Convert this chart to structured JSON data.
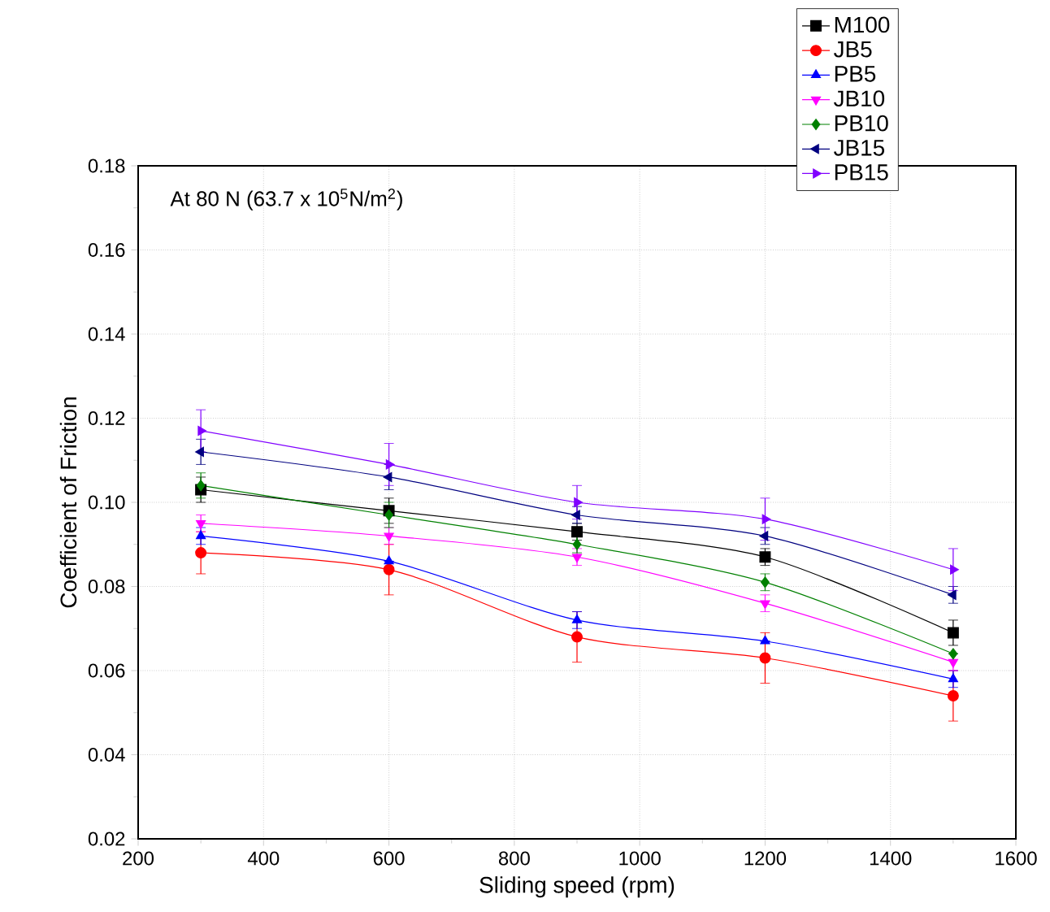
{
  "chart_data": {
    "type": "line",
    "xlabel": "Sliding speed (rpm)",
    "ylabel": "Coefficient of Friction",
    "annotations": [
      "At 80 N (63.7 x 10$^{5}$N/m$^{2}$)"
    ],
    "x": [
      300,
      600,
      900,
      1200,
      1500
    ],
    "xlim": [
      200,
      1600
    ],
    "xticks": [
      200,
      400,
      600,
      800,
      1000,
      1200,
      1400,
      1600
    ],
    "ylim": [
      0.02,
      0.18
    ],
    "yticks": [
      0.02,
      0.04,
      0.06,
      0.08,
      {
        "value": 0.1,
        "label": "0.10"
      },
      0.12,
      0.14,
      0.16,
      0.18
    ],
    "grid": true,
    "legend": "top right",
    "series": [
      {
        "name": "M100",
        "color": "#000000",
        "marker": "square",
        "values": [
          0.103,
          0.098,
          0.093,
          0.087,
          0.069
        ],
        "errors": [
          0.003,
          0.003,
          0.002,
          0.002,
          0.003
        ]
      },
      {
        "name": "JB5",
        "color": "#ff0000",
        "marker": "circle",
        "values": [
          0.088,
          0.084,
          0.068,
          0.063,
          0.054
        ],
        "errors": [
          0.005,
          0.006,
          0.006,
          0.006,
          0.006
        ]
      },
      {
        "name": "PB5",
        "color": "#0000ff",
        "marker": "triangle",
        "values": [
          0.092,
          0.086,
          0.072,
          0.067,
          0.058
        ],
        "errors": [
          0.002,
          null,
          0.002,
          null,
          0.002
        ]
      },
      {
        "name": "JB10",
        "color": "#ff00ff",
        "marker": "triangle-down",
        "values": [
          0.095,
          0.092,
          0.087,
          0.076,
          0.062
        ],
        "errors": [
          0.002,
          0.002,
          0.002,
          0.002,
          0.002
        ]
      },
      {
        "name": "PB10",
        "color": "#008000",
        "marker": "diamond",
        "values": [
          0.104,
          0.097,
          0.09,
          0.081,
          0.064
        ],
        "errors": [
          0.003,
          0.003,
          0.002,
          0.002,
          null
        ]
      },
      {
        "name": "JB15",
        "color": "#000080",
        "marker": "triangle-left",
        "values": [
          0.112,
          0.106,
          0.097,
          0.092,
          0.078
        ],
        "errors": [
          0.003,
          0.003,
          0.002,
          0.002,
          0.002
        ]
      },
      {
        "name": "PB15",
        "color": "#8000ff",
        "marker": "triangle-right",
        "values": [
          0.117,
          0.109,
          0.1,
          0.096,
          0.084
        ],
        "errors": [
          0.005,
          0.005,
          0.004,
          0.005,
          0.005
        ]
      }
    ]
  }
}
